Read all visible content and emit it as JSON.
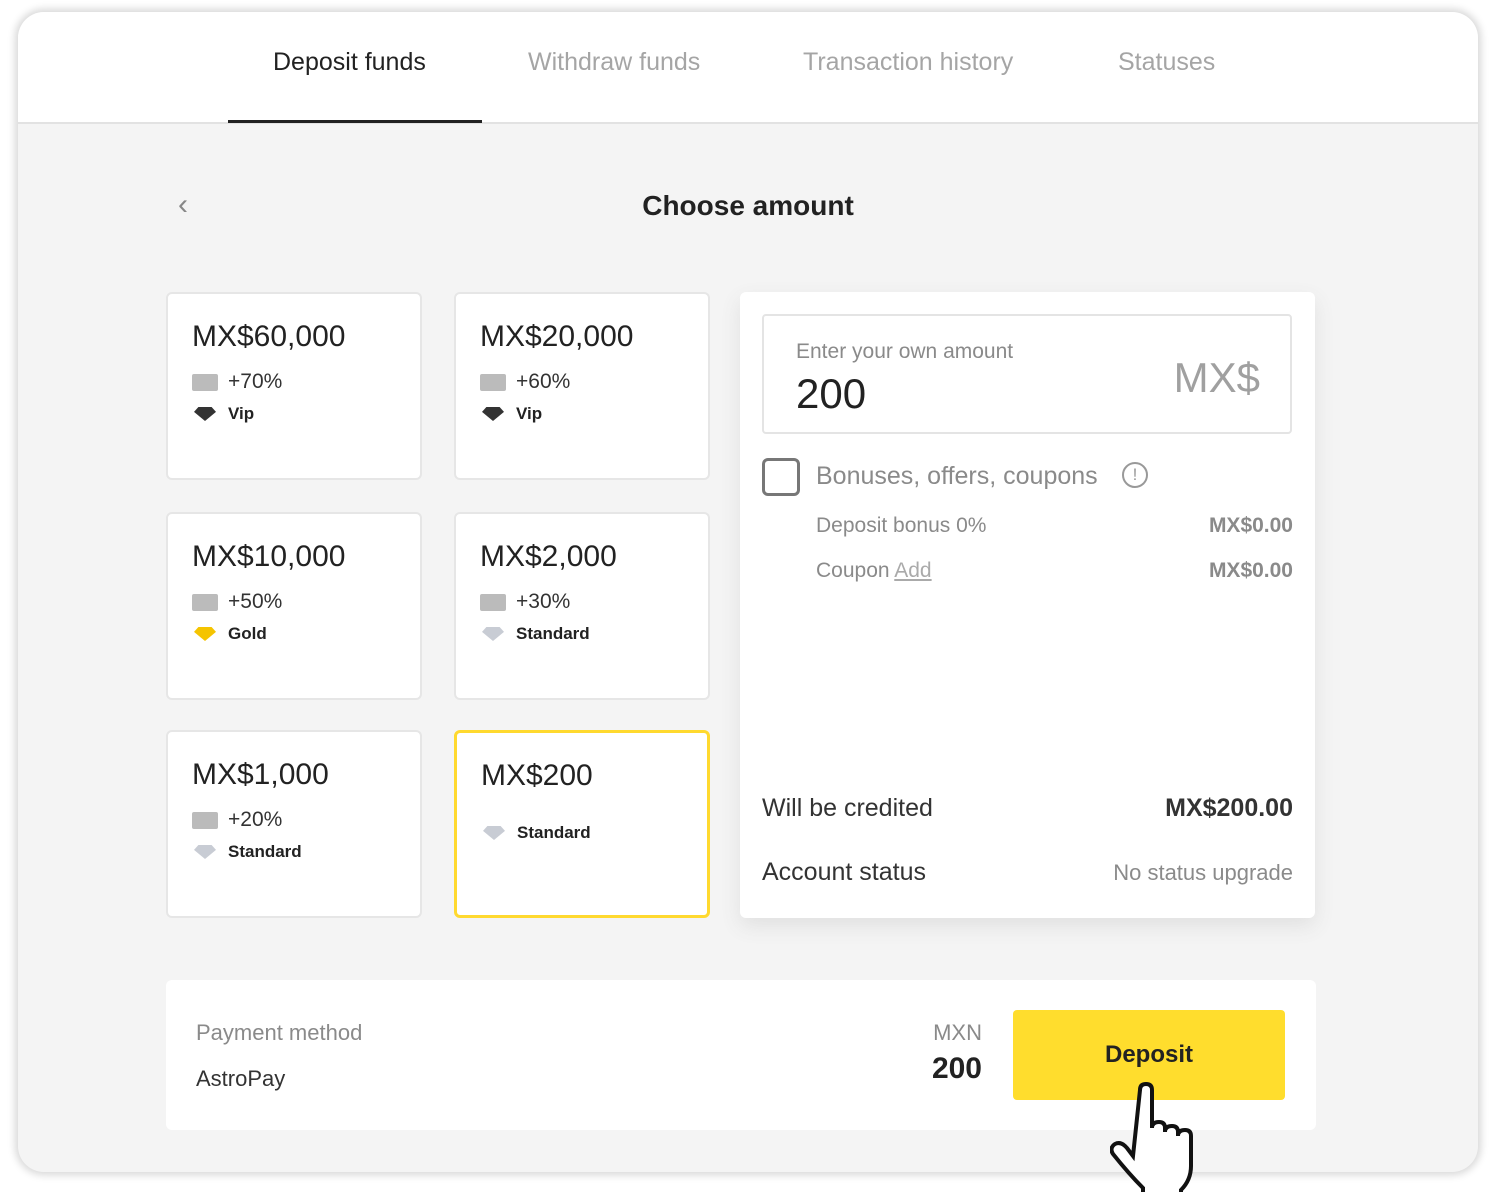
{
  "tabs": [
    {
      "label": "Deposit funds",
      "active": true
    },
    {
      "label": "Withdraw funds"
    },
    {
      "label": "Transaction history"
    },
    {
      "label": "Statuses"
    }
  ],
  "page_title": "Choose amount",
  "cards": [
    {
      "amount": "MX$60,000",
      "bonus": "+70%",
      "tier": "Vip"
    },
    {
      "amount": "MX$20,000",
      "bonus": "+60%",
      "tier": "Vip"
    },
    {
      "amount": "MX$10,000",
      "bonus": "+50%",
      "tier": "Gold"
    },
    {
      "amount": "MX$2,000",
      "bonus": "+30%",
      "tier": "Standard"
    },
    {
      "amount": "MX$1,000",
      "bonus": "+20%",
      "tier": "Standard"
    },
    {
      "amount": "MX$200",
      "tier": "Standard",
      "selected": true
    }
  ],
  "amount_input": {
    "label": "Enter your own amount",
    "value": "200",
    "currency": "MX$"
  },
  "bonuses": {
    "label": "Bonuses, offers, coupons",
    "checked": false,
    "deposit_bonus_label": "Deposit bonus 0%",
    "deposit_bonus_value": "MX$0.00",
    "coupon_label": "Coupon",
    "coupon_link": "Add",
    "coupon_value": "MX$0.00"
  },
  "credited": {
    "label": "Will be credited",
    "value": "MX$200.00"
  },
  "status": {
    "label": "Account status",
    "value": "No status upgrade"
  },
  "payment": {
    "label": "Payment method",
    "method": "AstroPay",
    "currency": "MXN",
    "amount": "200",
    "button": "Deposit"
  },
  "colors": {
    "accent": "#ffdd2d",
    "vip": "#333333",
    "gold": "#f5c400",
    "standard": "#c8ccd4"
  }
}
